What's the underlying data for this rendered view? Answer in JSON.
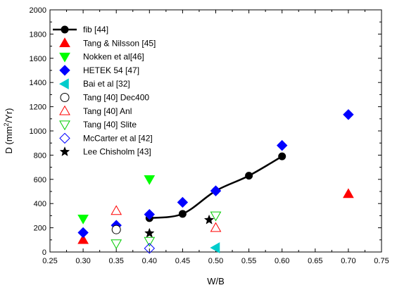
{
  "chart_data": {
    "type": "scatter",
    "xlabel": "W/B",
    "ylabel_main": "D (mm",
    "ylabel_sup": "2",
    "ylabel_tail": "/Yr)",
    "xlim": [
      0.25,
      0.75
    ],
    "ylim": [
      0,
      2000
    ],
    "xticks": [
      "0.25",
      "0.30",
      "0.35",
      "0.40",
      "0.45",
      "0.50",
      "0.55",
      "0.60",
      "0.65",
      "0.70",
      "0.75"
    ],
    "yticks": [
      "0",
      "200",
      "400",
      "600",
      "800",
      "1000",
      "1200",
      "1400",
      "1600",
      "1800",
      "2000"
    ],
    "grid": false,
    "legend_position": "top-left",
    "series": [
      {
        "name": "fib [44]",
        "marker": "circle-filled-line",
        "color": "#000000",
        "points": [
          [
            0.4,
            280
          ],
          [
            0.45,
            315
          ],
          [
            0.5,
            505
          ],
          [
            0.55,
            630
          ],
          [
            0.6,
            790
          ]
        ]
      },
      {
        "name": "Tang & Nilsson [45]",
        "marker": "triangle-up-filled",
        "color": "#ff0000",
        "points": [
          [
            0.3,
            100
          ],
          [
            0.7,
            480
          ]
        ]
      },
      {
        "name": "Nokken et al[46]",
        "marker": "triangle-down-filled",
        "color": "#00ff00",
        "points": [
          [
            0.3,
            275
          ],
          [
            0.4,
            600
          ]
        ]
      },
      {
        "name": "HETEK 54 [47]",
        "marker": "diamond-filled",
        "color": "#0000ff",
        "points": [
          [
            0.3,
            160
          ],
          [
            0.35,
            220
          ],
          [
            0.4,
            310
          ],
          [
            0.45,
            410
          ],
          [
            0.5,
            505
          ],
          [
            0.6,
            880
          ],
          [
            0.7,
            1135
          ]
        ]
      },
      {
        "name": "Bai et al [32]",
        "marker": "triangle-left-filled",
        "color": "#00cccc",
        "points": [
          [
            0.5,
            35
          ]
        ]
      },
      {
        "name": "Tang [40] Dec400",
        "marker": "circle-open",
        "color": "#000000",
        "points": [
          [
            0.35,
            185
          ]
        ]
      },
      {
        "name": "Tang [40] Anl",
        "marker": "triangle-up-open",
        "color": "#ff0000",
        "points": [
          [
            0.35,
            340
          ],
          [
            0.5,
            200
          ]
        ]
      },
      {
        "name": "Tang [40] Slite",
        "marker": "triangle-down-open",
        "color": "#00cc00",
        "points": [
          [
            0.35,
            70
          ],
          [
            0.4,
            90
          ],
          [
            0.5,
            300
          ]
        ]
      },
      {
        "name": "McCarter et al [42]",
        "marker": "diamond-open",
        "color": "#0000ff",
        "points": [
          [
            0.4,
            30
          ]
        ]
      },
      {
        "name": "Lee Chisholm [43]",
        "marker": "star-filled",
        "color": "#000000",
        "points": [
          [
            0.4,
            155
          ],
          [
            0.49,
            265
          ]
        ]
      }
    ]
  }
}
